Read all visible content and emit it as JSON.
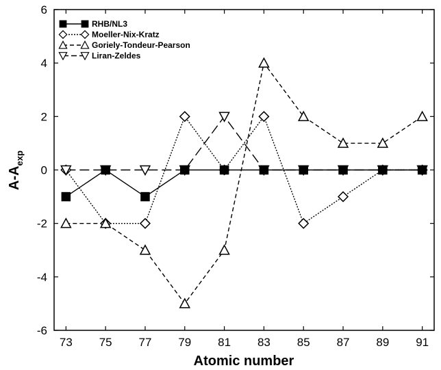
{
  "chart_data": {
    "type": "line",
    "title": "",
    "xlabel": "Atomic number",
    "ylabel_main": "A-A",
    "ylabel_sub": "exp",
    "xlim": [
      72.4,
      91.6
    ],
    "ylim": [
      -6,
      6
    ],
    "x_ticks": [
      73,
      75,
      77,
      79,
      81,
      83,
      85,
      87,
      89,
      91
    ],
    "y_ticks": [
      -6,
      -4,
      -2,
      0,
      2,
      4,
      6
    ],
    "grid": false,
    "legend_position": "top-left",
    "series": [
      {
        "name": "RHB/NL3",
        "marker": "square-filled",
        "line_style": "solid",
        "points": [
          [
            73,
            -1
          ],
          [
            75,
            0
          ],
          [
            77,
            -1
          ],
          [
            79,
            0
          ],
          [
            81,
            0
          ],
          [
            83,
            0
          ],
          [
            85,
            0
          ],
          [
            87,
            0
          ],
          [
            89,
            0
          ],
          [
            91,
            0
          ]
        ]
      },
      {
        "name": "Moeller-Nix-Kratz",
        "marker": "diamond-open",
        "line_style": "dotted",
        "points": [
          [
            73,
            0
          ],
          [
            75,
            -2
          ],
          [
            77,
            -2
          ],
          [
            79,
            2
          ],
          [
            81,
            0
          ],
          [
            83,
            2
          ],
          [
            85,
            -2
          ],
          [
            87,
            -1
          ],
          [
            89,
            0
          ],
          [
            91,
            0
          ]
        ]
      },
      {
        "name": "Goriely-Tondeur-Pearson",
        "marker": "triangle-up-open",
        "line_style": "dashed",
        "points": [
          [
            73,
            -2
          ],
          [
            75,
            -2
          ],
          [
            77,
            -3
          ],
          [
            79,
            -5
          ],
          [
            81,
            -3
          ],
          [
            83,
            4
          ],
          [
            85,
            2
          ],
          [
            87,
            1
          ],
          [
            89,
            1
          ],
          [
            91,
            2
          ]
        ]
      },
      {
        "name": "Liran-Zeldes",
        "marker": "triangle-down-open",
        "line_style": "long-dashed",
        "points": [
          [
            73,
            0
          ],
          [
            75,
            0
          ],
          [
            77,
            0
          ],
          [
            79,
            0
          ],
          [
            81,
            2
          ],
          [
            83,
            0
          ],
          [
            85,
            0
          ],
          [
            87,
            0
          ],
          [
            89,
            0
          ],
          [
            91,
            0
          ]
        ]
      }
    ]
  }
}
